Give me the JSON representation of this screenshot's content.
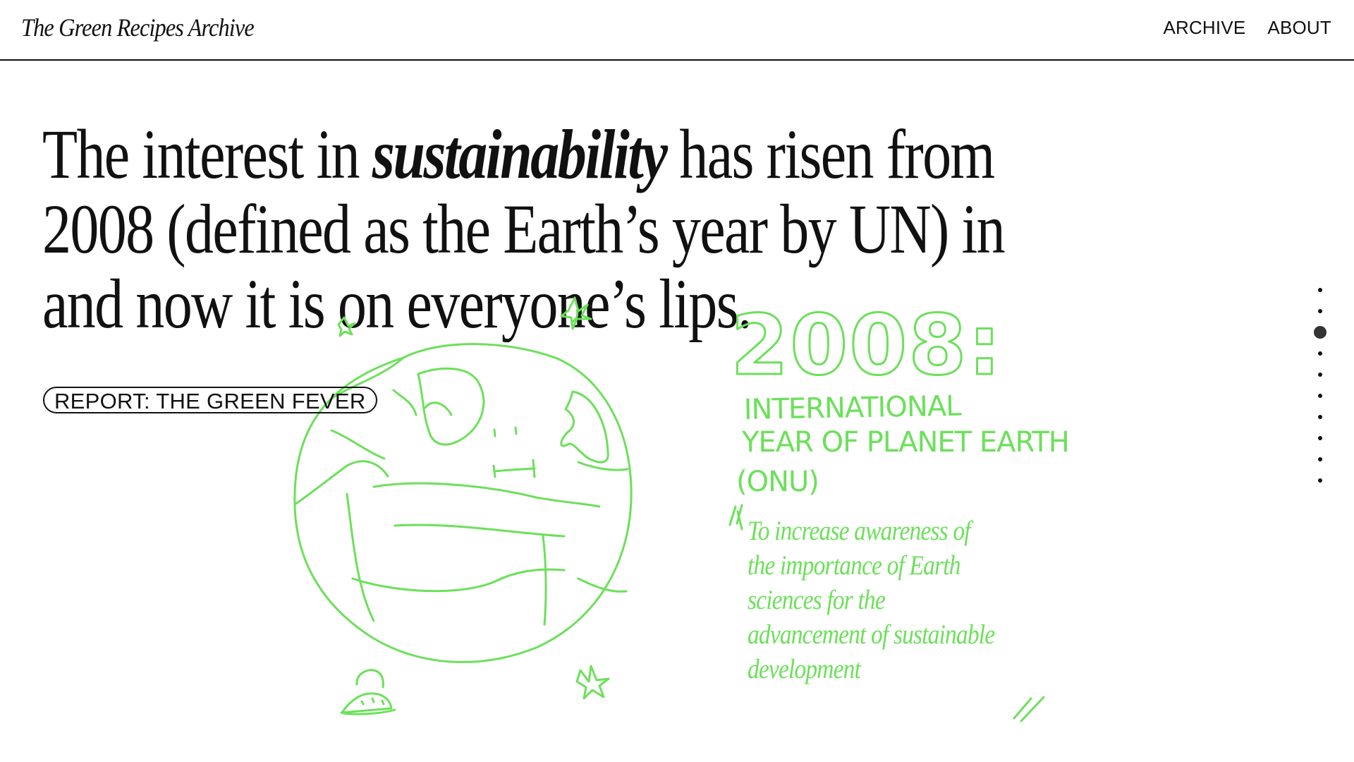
{
  "header": {
    "site_title": "The Green Recipes Archive",
    "nav": [
      "ARCHIVE",
      "ABOUT"
    ]
  },
  "hero": {
    "headline_before": "The interest in ",
    "headline_emphasis": "sustainability",
    "headline_after": " has risen from 2008 (defined as the Earth’s year by UN) in and now it is on everyone’s lips.",
    "report_label": "REPORT: THE GREEN FEVER"
  },
  "illustration": {
    "year": "2008:",
    "event_line1": "INTERNATIONAL",
    "event_line2": "YEAR OF PLANET EARTH",
    "event_org": "(ONU)",
    "description": "To increase awareness of the importance of Earth sciences for the advancement of sustainable development",
    "color": "#6ce05a",
    "icons": [
      "earth-icon",
      "star-icon",
      "ufo-icon"
    ]
  },
  "pagination": {
    "total": 10,
    "current": 3
  }
}
